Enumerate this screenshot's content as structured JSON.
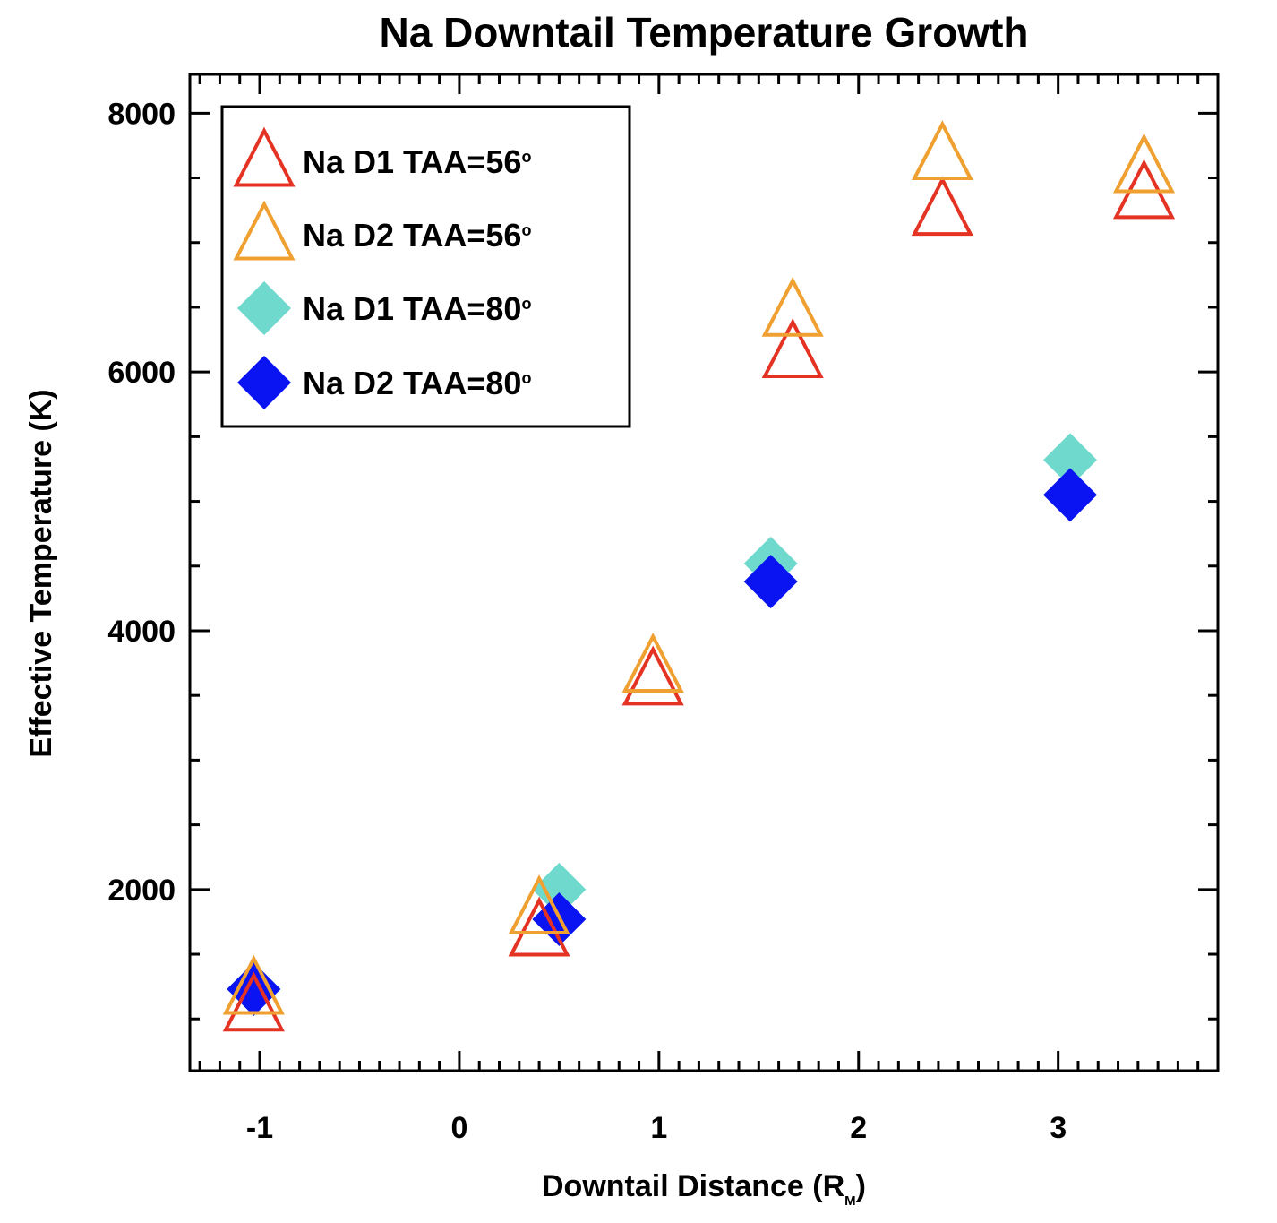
{
  "chart_data": {
    "type": "scatter",
    "title": "Na Downtail Temperature Growth",
    "xlabel_main": "Downtail Distance (R",
    "xlabel_sub": "M",
    "xlabel_close": ")",
    "ylabel": "Effective Temperature (K)",
    "xlim": [
      -1.35,
      3.8
    ],
    "ylim": [
      600,
      8300
    ],
    "x_ticks": [
      -1,
      0,
      1,
      2,
      3
    ],
    "x_tick_labels": [
      "-1",
      "0",
      "1",
      "2",
      "3"
    ],
    "y_ticks": [
      2000,
      4000,
      6000,
      8000
    ],
    "y_tick_labels": [
      "2000",
      "4000",
      "6000",
      "8000"
    ],
    "x_minor_step": 0.1,
    "y_minor_step": 500,
    "legend_position": "top-left",
    "degree_symbol": "o",
    "series": [
      {
        "name": "Na D1 TAA=56",
        "marker": "open-triangle",
        "color": "#e53323",
        "x": [
          -1.03,
          0.4,
          0.97,
          1.67,
          2.42,
          3.43
        ],
        "y": [
          1100,
          1680,
          3620,
          6150,
          7250,
          7380
        ]
      },
      {
        "name": "Na D2 TAA=56",
        "marker": "open-triangle",
        "color": "#f0a030",
        "x": [
          -1.03,
          0.4,
          0.97,
          1.67,
          2.42,
          3.43
        ],
        "y": [
          1230,
          1850,
          3720,
          6470,
          7680,
          7580
        ]
      },
      {
        "name": "Na D1 TAA=80",
        "marker": "filled-diamond",
        "color": "#6fd9cd",
        "x": [
          -1.03,
          0.5,
          1.56,
          3.06
        ],
        "y": [
          1230,
          2000,
          4520,
          5320
        ]
      },
      {
        "name": "Na D2 TAA=80",
        "marker": "filled-diamond",
        "color": "#0a14f2",
        "x": [
          -1.03,
          0.5,
          1.56,
          3.06
        ],
        "y": [
          1230,
          1770,
          4380,
          5050
        ]
      }
    ]
  }
}
